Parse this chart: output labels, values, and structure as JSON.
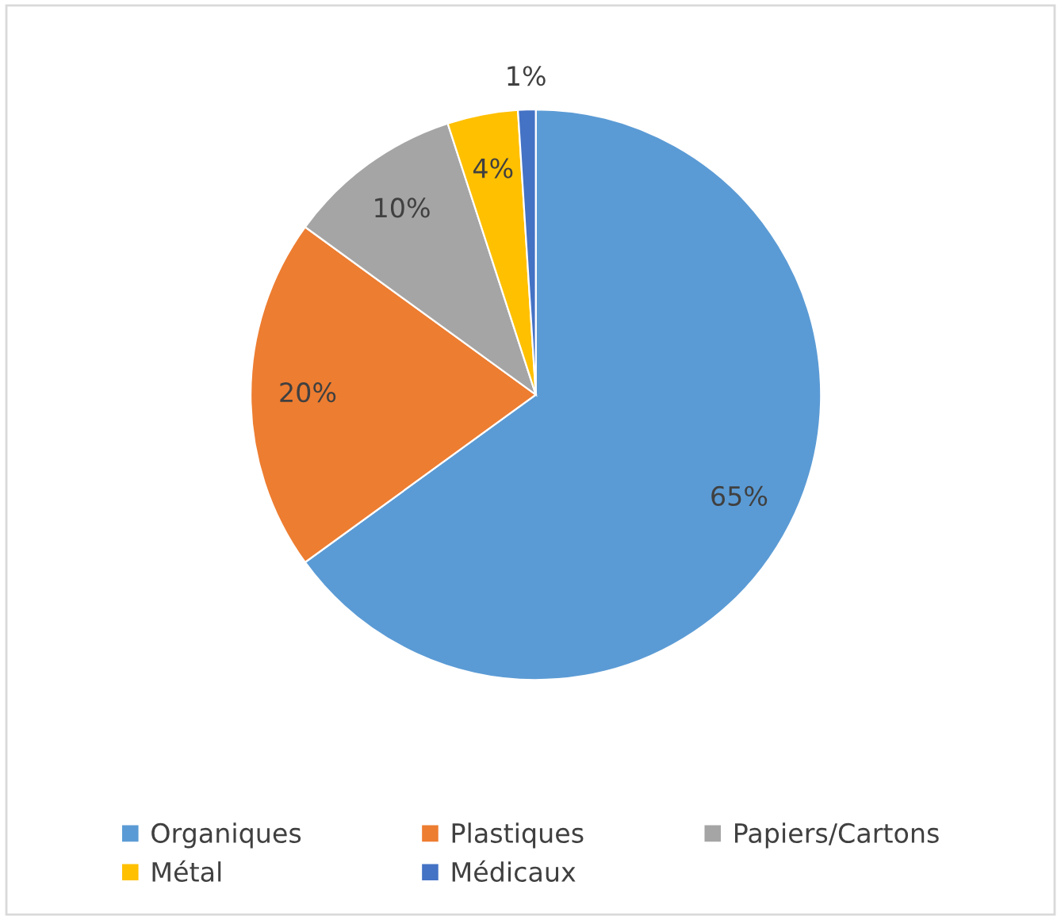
{
  "chart_data": {
    "type": "pie",
    "categories": [
      "Organiques",
      "Plastiques",
      "Papiers/Cartons",
      "Métal",
      "Médicaux"
    ],
    "values": [
      65,
      20,
      10,
      4,
      1
    ],
    "colors": [
      "#5b9bd5",
      "#ed7d31",
      "#a5a5a5",
      "#ffc000",
      "#4472c4"
    ],
    "value_labels": [
      "65%",
      "20%",
      "10%",
      "4%",
      "1%"
    ],
    "legend": "bottom"
  }
}
